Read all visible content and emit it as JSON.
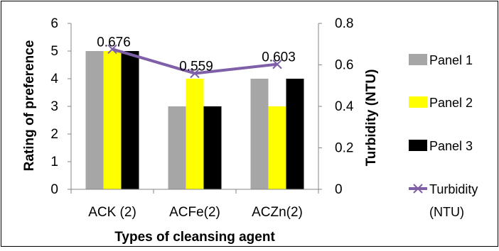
{
  "chart_data": {
    "type": "bar",
    "categories": [
      "ACK (2)",
      "ACFe(2)",
      "ACZn(2)"
    ],
    "series": [
      {
        "name": "Panel 1",
        "values": [
          5,
          3,
          4
        ],
        "color": "#a6a6a6"
      },
      {
        "name": "Panel 2",
        "values": [
          5,
          4,
          3
        ],
        "color": "#ffff00"
      },
      {
        "name": "Panel 3",
        "values": [
          5,
          3,
          4
        ],
        "color": "#000000"
      }
    ],
    "line_series": {
      "name_lines": [
        "Turbidity",
        "(NTU)"
      ],
      "values": [
        0.676,
        0.559,
        0.603
      ],
      "labels": [
        "0.676",
        "0.559",
        "0.603"
      ],
      "color": "#7f5fa8",
      "marker": "x",
      "axis": "secondary"
    },
    "xlabel": "Types of cleansing agent",
    "ylabel": "Rating of preference",
    "y2label": "Turbidity (NTU)",
    "ylim": [
      0,
      6
    ],
    "yticks": [
      "0",
      "1",
      "2",
      "3",
      "4",
      "5",
      "6"
    ],
    "y2lim": [
      0,
      0.8
    ],
    "y2ticks": [
      "0",
      "0.2",
      "0.4",
      "0.6",
      "0.8"
    ],
    "legend_position": "right",
    "grid": false
  }
}
